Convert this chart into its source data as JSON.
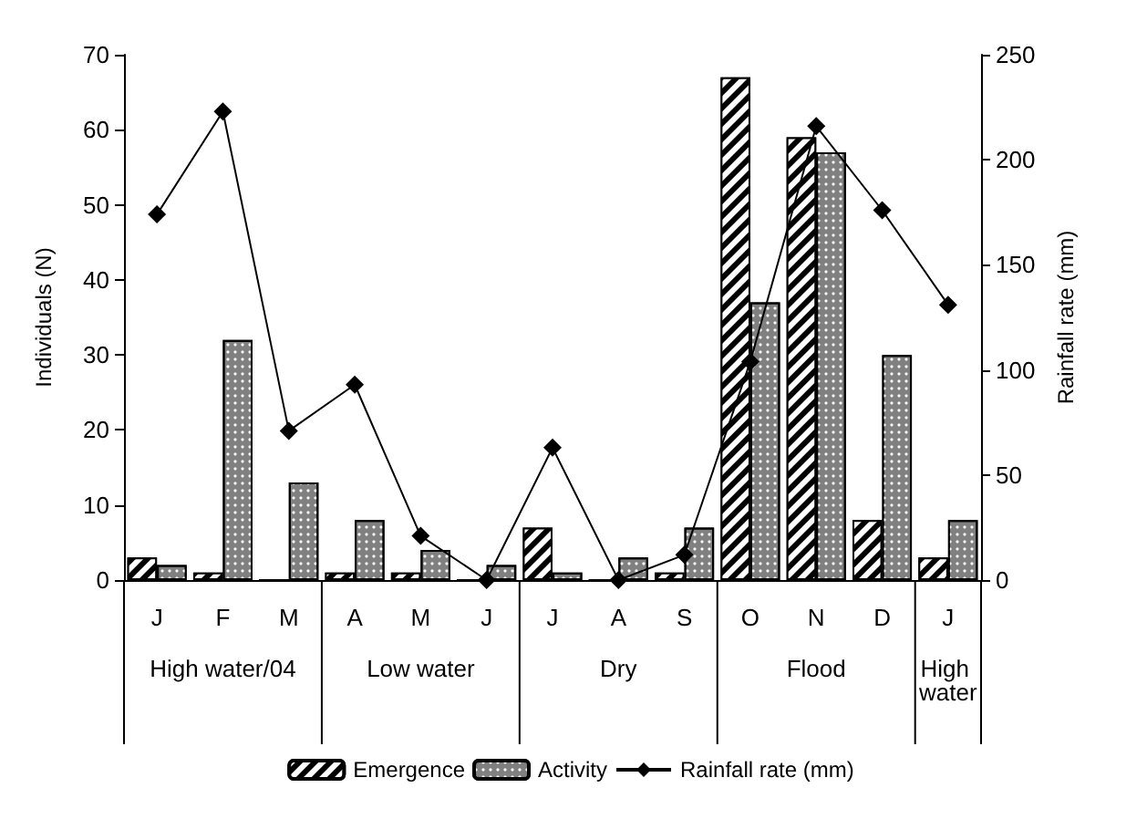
{
  "chart_data": {
    "type": "bar",
    "xlabel": null,
    "ylabel": "Individuals (N)",
    "y2label": "Rainfall rate (mm)",
    "categories": [
      "J",
      "F",
      "M",
      "A",
      "M",
      "J",
      "J",
      "A",
      "S",
      "O",
      "N",
      "D",
      "J"
    ],
    "series": [
      {
        "name": "Emergence",
        "color": "#000000",
        "values": [
          3,
          1,
          0,
          1,
          1,
          0,
          7,
          0,
          1,
          67,
          59,
          8,
          3
        ]
      },
      {
        "name": "Activity",
        "color": "#808080",
        "values": [
          2,
          32,
          13,
          8,
          4,
          2,
          1,
          3,
          7,
          37,
          57,
          30,
          8
        ]
      },
      {
        "name": "Rainfall rate (mm)",
        "type": "line",
        "axis": "y2",
        "color": "#000000",
        "marker": "diamond",
        "values": [
          174,
          223,
          71,
          93,
          21,
          0,
          63,
          0,
          12,
          104,
          216,
          176,
          131
        ]
      }
    ],
    "annotations": [
      "High water/04",
      "Low water",
      "Dry",
      "Flood",
      "High water"
    ],
    "ylim": [
      0,
      70
    ],
    "yticks": [
      0,
      10,
      20,
      30,
      40,
      50,
      60,
      70
    ],
    "y2lim": [
      0,
      250
    ],
    "y2ticks": [
      0,
      50,
      100,
      150,
      200,
      250
    ],
    "grid": false,
    "legend": "bottom"
  }
}
